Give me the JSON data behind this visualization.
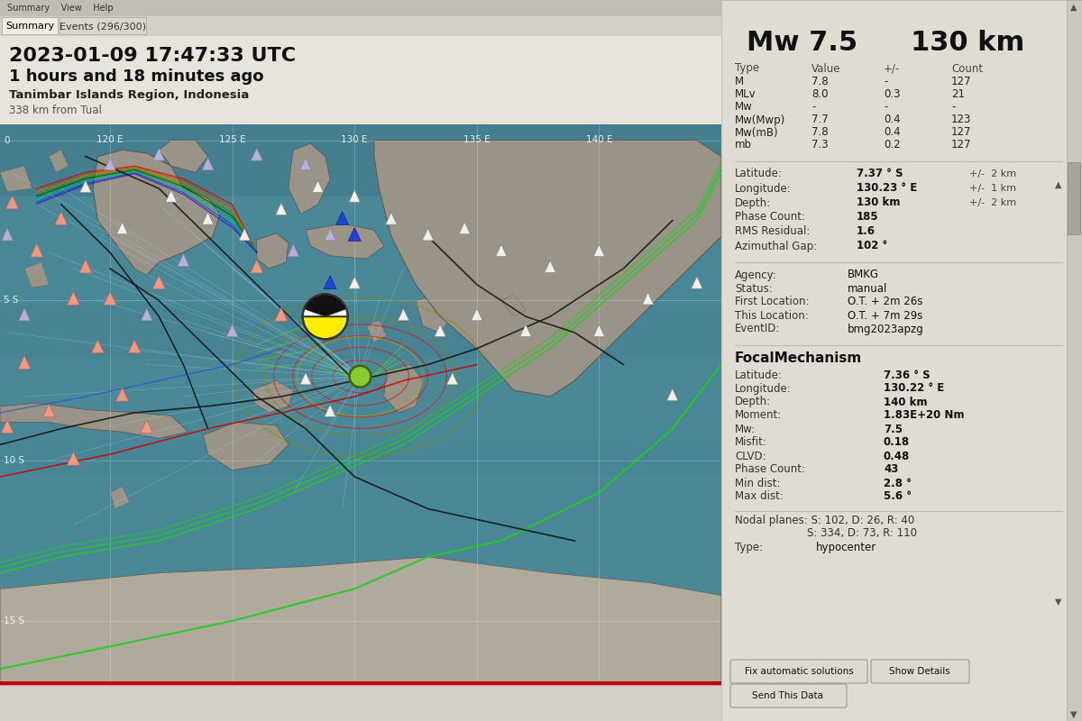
{
  "title_datetime": "2023-01-09 17:47:33 UTC",
  "title_ago": "1 hours and 18 minutes ago",
  "title_location": "Tanimbar Islands Region, Indonesia",
  "title_distance": "338 km from Tual",
  "mw": "Mw 7.5",
  "depth_km": "130 km",
  "tab1": "Summary",
  "tab2": "Events (296/300)",
  "mag_table_headers": [
    "Type",
    "Value",
    "+/-",
    "Count"
  ],
  "mag_table_rows": [
    [
      "M",
      "7.8",
      "-",
      "127"
    ],
    [
      "MLv",
      "8.0",
      "0.3",
      "21"
    ],
    [
      "Mw",
      "-",
      "-",
      "-"
    ],
    [
      "Mw(Mwp)",
      "7.7",
      "0.4",
      "123"
    ],
    [
      "Mw(mB)",
      "7.8",
      "0.4",
      "127"
    ],
    [
      "mb",
      "7.3",
      "0.2",
      "127"
    ]
  ],
  "info_rows": [
    [
      "Latitude:",
      "7.37 ° S",
      "+/-  2 km"
    ],
    [
      "Longitude:",
      "130.23 ° E",
      "+/-  1 km"
    ],
    [
      "Depth:",
      "130 km",
      "+/-  2 km"
    ],
    [
      "Phase Count:",
      "185",
      ""
    ],
    [
      "RMS Residual:",
      "1.6",
      ""
    ],
    [
      "Azimuthal Gap:",
      "102 °",
      ""
    ]
  ],
  "agency_rows": [
    [
      "Agency:",
      "BMKG"
    ],
    [
      "Status:",
      "manual"
    ],
    [
      "First Location:",
      "O.T. + 2m 26s"
    ],
    [
      "This Location:",
      "O.T. + 7m 29s"
    ],
    [
      "EventID:",
      "bmg2023apzg"
    ]
  ],
  "focal_title": "FocalMechanism",
  "focal_rows": [
    [
      "Latitude:",
      "7.36 ° S"
    ],
    [
      "Longitude:",
      "130.22 ° E"
    ],
    [
      "Depth:",
      "140 km"
    ],
    [
      "Moment:",
      "1.83E+20 Nm"
    ],
    [
      "Mw:",
      "7.5"
    ],
    [
      "Misfit:",
      "0.18"
    ],
    [
      "CLVD:",
      "0.48"
    ],
    [
      "Phase Count:",
      "43"
    ],
    [
      "Min dist:",
      "2.8 °"
    ],
    [
      "Max dist:",
      "5.6 °"
    ]
  ],
  "nodal_planes": "Nodal planes: S: 102, D: 26, R: 40",
  "nodal_planes2": "S: 334, D: 73, R: 110",
  "type_row": [
    "Type:",
    "hypocenter"
  ],
  "btn1": "Fix automatic solutions",
  "btn2": "Show Details",
  "btn3": "Send This Data",
  "bg_color": "#d4d0c8",
  "panel_bg": "#e0dcd4",
  "map_ocean": "#4a8a9a",
  "close_btn_color": "#f0e060"
}
